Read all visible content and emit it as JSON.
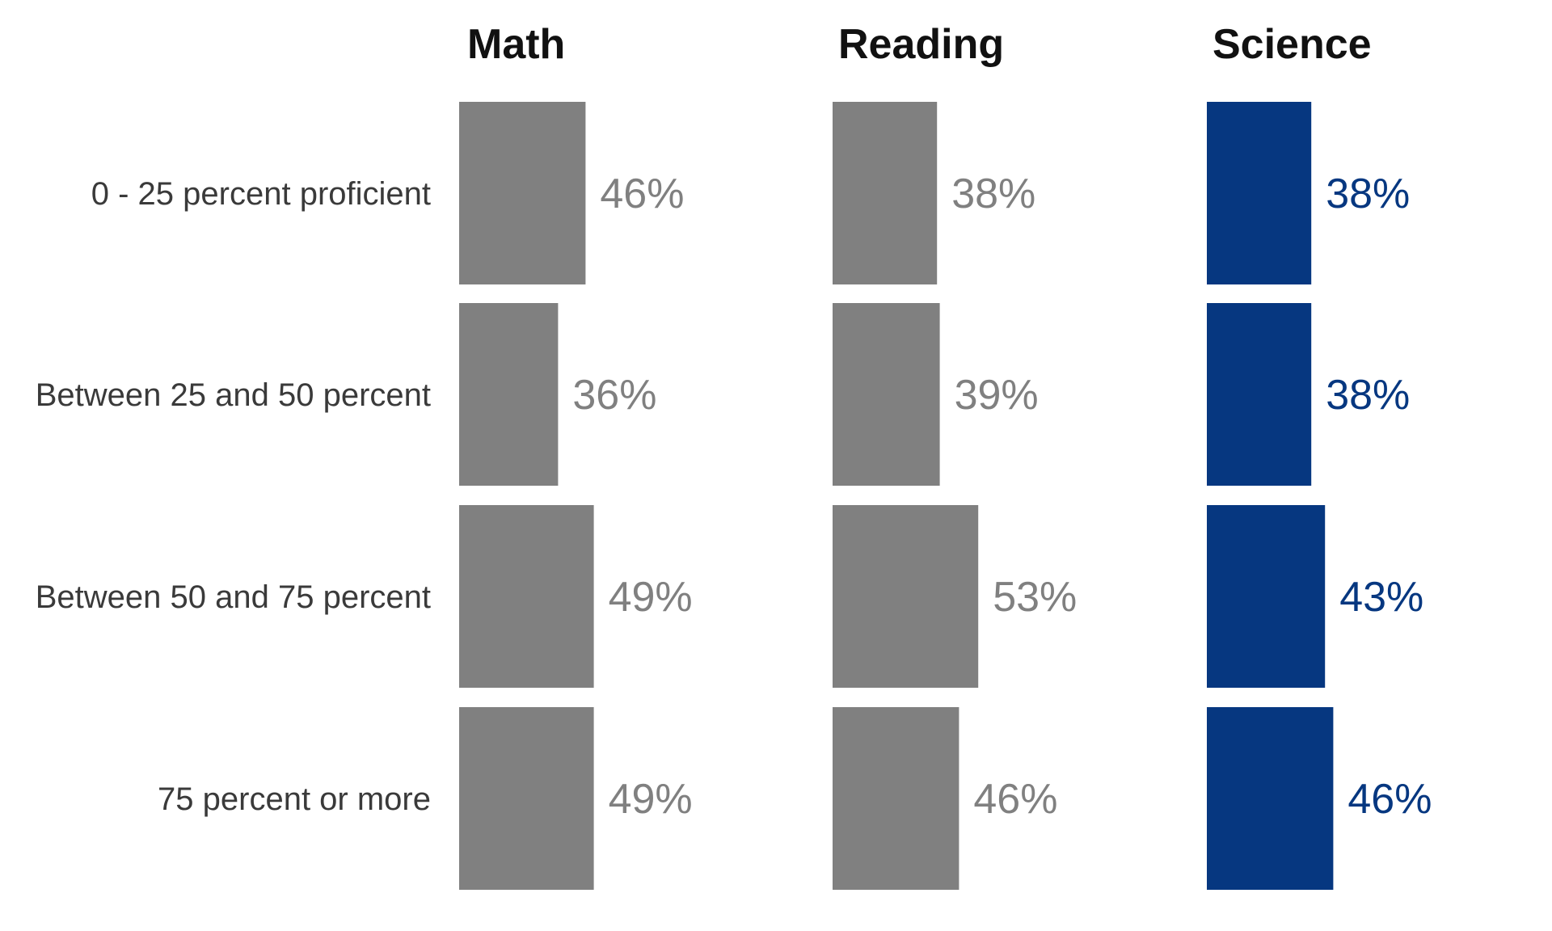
{
  "chart_data": {
    "type": "bar",
    "orientation": "horizontal",
    "categories": [
      "0 - 25 percent proficient",
      "Between 25 and 50 percent",
      "Between 50 and 75 percent",
      "75 percent or more"
    ],
    "series": [
      {
        "name": "Math",
        "values": [
          46,
          36,
          49,
          49
        ],
        "labels": [
          "46%",
          "36%",
          "49%",
          "49%"
        ],
        "color": "#808080"
      },
      {
        "name": "Reading",
        "values": [
          38,
          39,
          53,
          46
        ],
        "labels": [
          "38%",
          "39%",
          "53%",
          "46%"
        ],
        "color": "#808080"
      },
      {
        "name": "Science",
        "values": [
          38,
          38,
          43,
          46
        ],
        "labels": [
          "38%",
          "38%",
          "43%",
          "46%"
        ],
        "color": "#063780"
      }
    ],
    "title": "",
    "xlabel": "",
    "ylabel": "",
    "grid": false,
    "legend": "none"
  }
}
